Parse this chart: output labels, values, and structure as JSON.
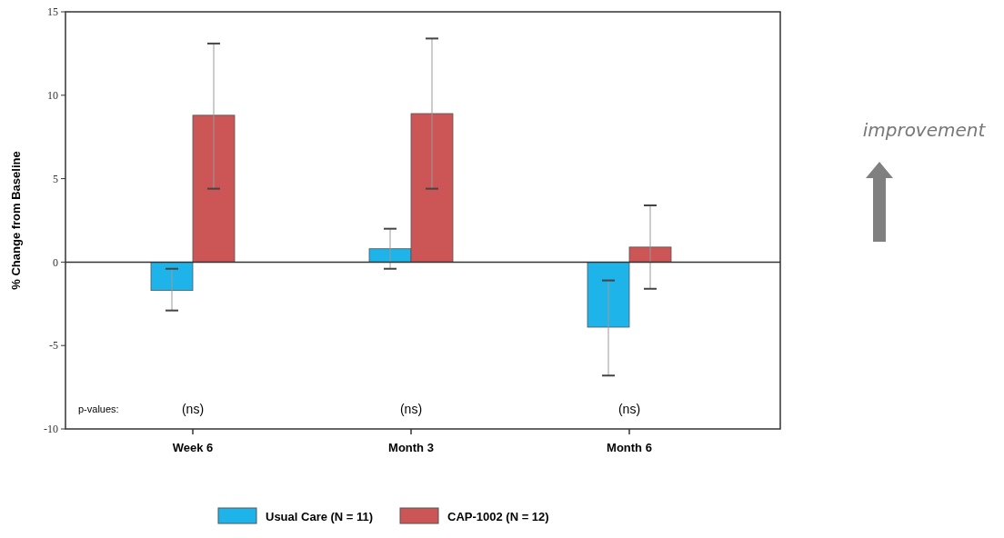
{
  "chart_data": {
    "type": "bar",
    "ylabel": "% Change from Baseline",
    "categories": [
      "Week 6",
      "Month 3",
      "Month 6"
    ],
    "series": [
      {
        "name": "Usual Care (N = 11)",
        "color": "#1eb4ea",
        "values": [
          -1.7,
          0.8,
          -3.9
        ],
        "errors": [
          [
            -2.9,
            -0.4
          ],
          [
            -0.4,
            2.0
          ],
          [
            -6.8,
            -1.1
          ]
        ]
      },
      {
        "name": "CAP-1002 (N = 12)",
        "color": "#cc5555",
        "values": [
          8.8,
          8.9,
          0.9
        ],
        "errors": [
          [
            4.4,
            13.1
          ],
          [
            4.4,
            13.4
          ],
          [
            -1.6,
            3.4
          ]
        ]
      }
    ],
    "ylim": [
      -10,
      15
    ],
    "yticks": [
      -10,
      -5,
      0,
      5,
      10,
      15
    ],
    "legend": "bottom",
    "annotations": [
      "p-values:",
      "(ns)",
      "(ns)",
      "(ns)",
      "improvement"
    ]
  }
}
